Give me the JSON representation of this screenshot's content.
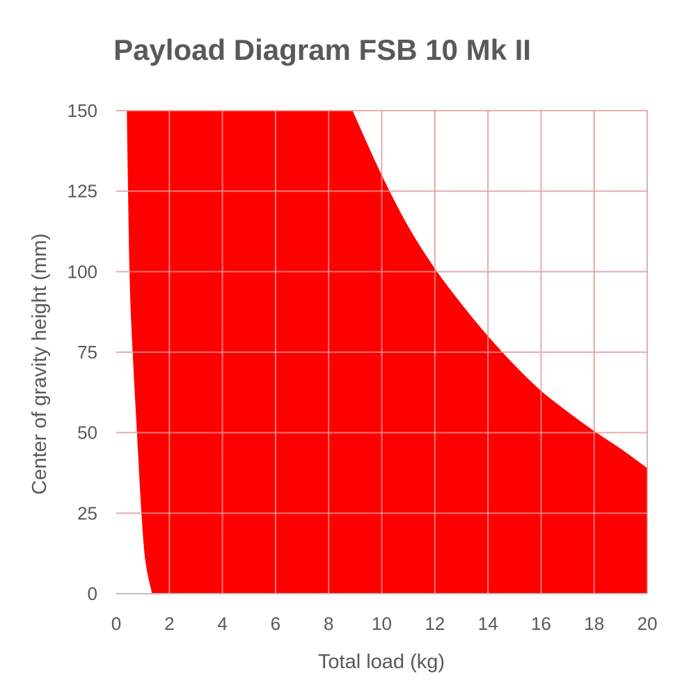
{
  "chart_data": {
    "type": "area",
    "title": "Payload Diagram FSB 10 Mk II",
    "xlabel": "Total load (kg)",
    "ylabel": "Center of gravity height (mm)",
    "xlim": [
      0,
      20
    ],
    "ylim": [
      0,
      150
    ],
    "x_ticks": [
      "0",
      "2",
      "4",
      "6",
      "8",
      "10",
      "12",
      "14",
      "16",
      "18",
      "20"
    ],
    "y_ticks": [
      "0",
      "25",
      "50",
      "75",
      "100",
      "125",
      "150"
    ],
    "grid": true,
    "legend": "none",
    "fill_color": "#ff0000",
    "series": [
      {
        "region": "permitted",
        "lower_bound": [
          {
            "x": 0.4,
            "y": 150
          },
          {
            "x": 0.5,
            "y": 100
          },
          {
            "x": 0.62,
            "y": 75
          },
          {
            "x": 0.78,
            "y": 50
          },
          {
            "x": 0.95,
            "y": 25
          },
          {
            "x": 1.1,
            "y": 10
          },
          {
            "x": 1.35,
            "y": 0
          }
        ],
        "upper_bound": [
          {
            "x": 0.4,
            "y": 150
          },
          {
            "x": 8.9,
            "y": 150
          },
          {
            "x": 10,
            "y": 130
          },
          {
            "x": 11,
            "y": 114
          },
          {
            "x": 12,
            "y": 101
          },
          {
            "x": 13,
            "y": 90
          },
          {
            "x": 14,
            "y": 80
          },
          {
            "x": 15,
            "y": 71
          },
          {
            "x": 16,
            "y": 63
          },
          {
            "x": 17,
            "y": 56.5
          },
          {
            "x": 18,
            "y": 50.5
          },
          {
            "x": 19,
            "y": 45
          },
          {
            "x": 20,
            "y": 39
          }
        ],
        "right_edge": [
          {
            "x": 20,
            "y": 39
          },
          {
            "x": 20,
            "y": 0
          }
        ]
      }
    ]
  }
}
